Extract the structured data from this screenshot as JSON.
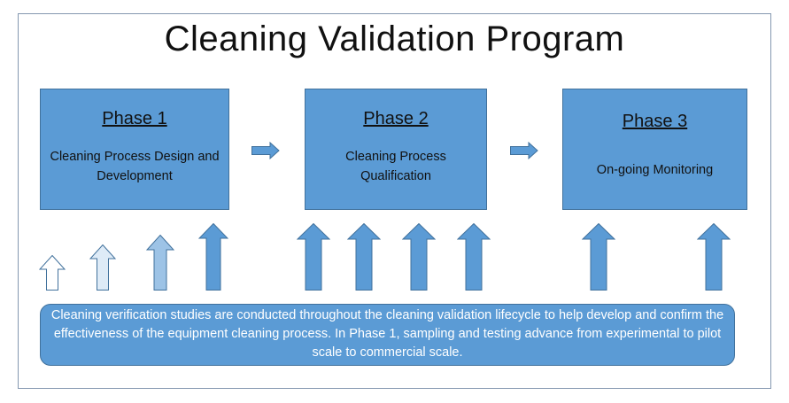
{
  "title": "Cleaning Validation Program",
  "colors": {
    "box_fill": "#5b9bd5",
    "box_border": "#41719c",
    "frame_border": "#8497b0"
  },
  "phases": [
    {
      "title": "Phase 1",
      "description": "Cleaning Process Design and Development"
    },
    {
      "title": "Phase 2",
      "description": "Cleaning Process Qualification"
    },
    {
      "title": "Phase 3",
      "description": "On-going Monitoring"
    }
  ],
  "note": "Cleaning verification studies are conducted throughout the cleaning validation lifecycle to help develop and confirm the effectiveness of the equipment cleaning process. In Phase 1, sampling and testing advance from experimental to pilot scale to commercial scale."
}
